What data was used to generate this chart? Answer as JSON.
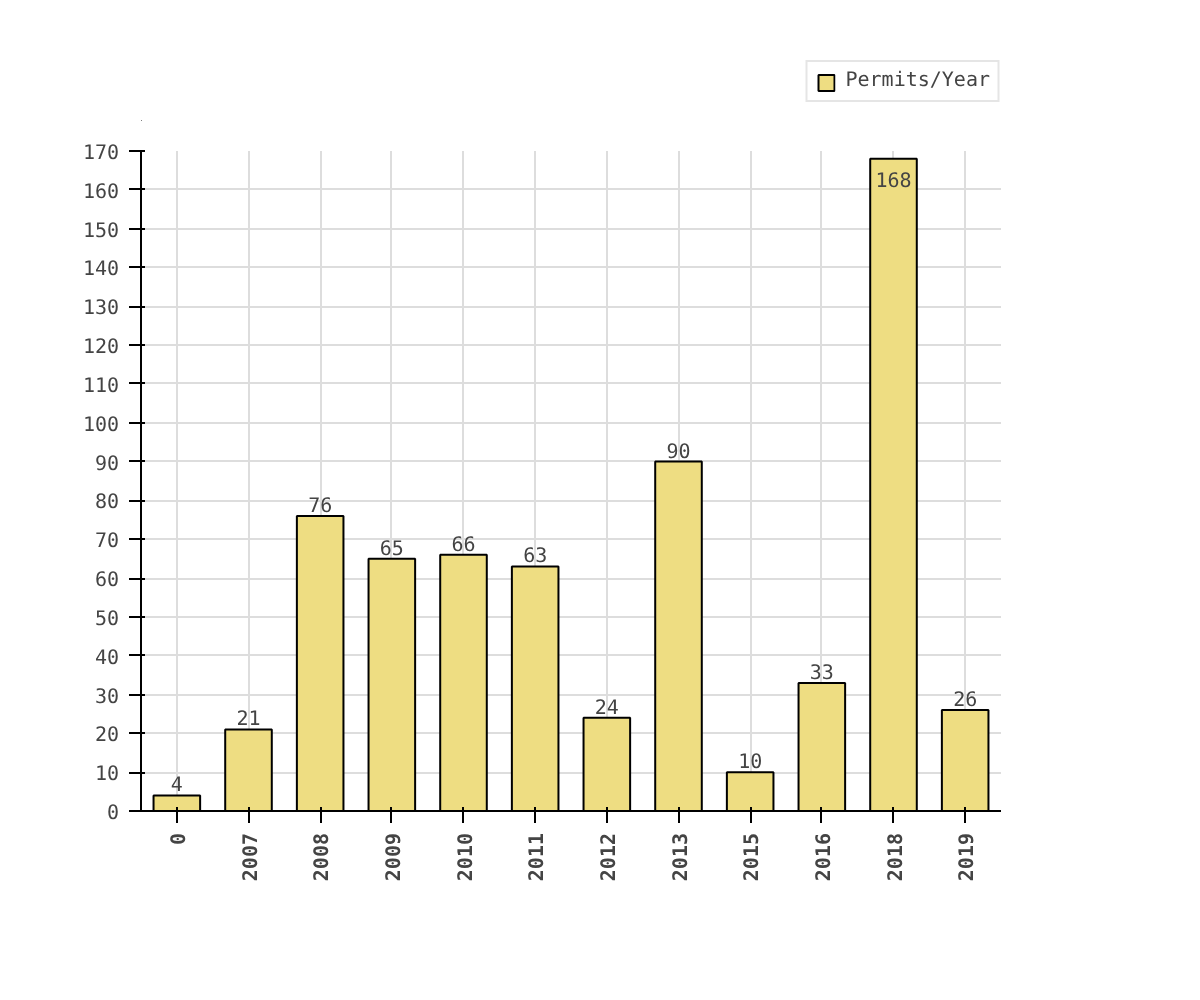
{
  "chart_data": {
    "type": "bar",
    "categories": [
      "0",
      "2007",
      "2008",
      "2009",
      "2010",
      "2011",
      "2012",
      "2013",
      "2015",
      "2016",
      "2018",
      "2019"
    ],
    "series": [
      {
        "name": "Permits/Year",
        "color": "#eedd82",
        "values": [
          4,
          21,
          76,
          65,
          66,
          63,
          24,
          90,
          10,
          33,
          168,
          26
        ]
      }
    ],
    "ylim": [
      0,
      170
    ],
    "yticks": [
      0,
      10,
      20,
      30,
      40,
      50,
      60,
      70,
      80,
      90,
      100,
      110,
      120,
      130,
      140,
      150,
      160,
      170
    ],
    "grid": true,
    "legend": "top right",
    "data_labels": true
  }
}
